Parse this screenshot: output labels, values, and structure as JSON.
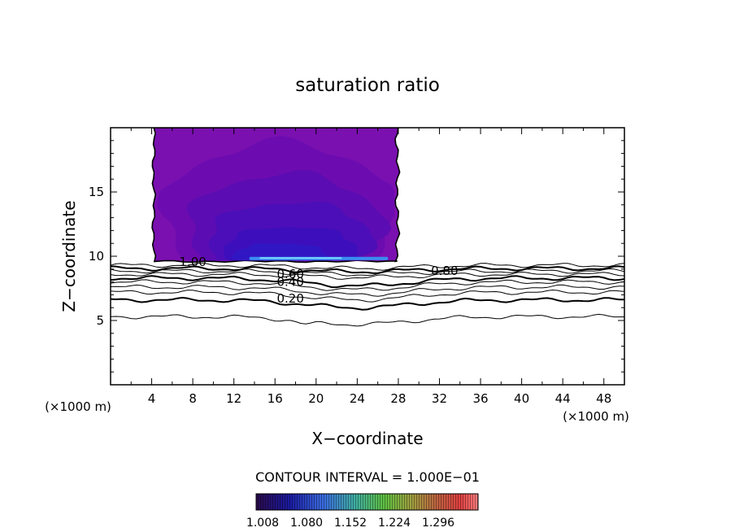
{
  "chart_data": {
    "type": "contour",
    "title": "saturation ratio",
    "xlabel": "X−coordinate",
    "ylabel": "Z−coordinate",
    "x_unit": "(×1000 m)",
    "y_unit": "(×1000 m)",
    "xlim": [
      0,
      50
    ],
    "ylim": [
      0,
      20
    ],
    "x_ticks": [
      4,
      8,
      12,
      16,
      20,
      24,
      28,
      32,
      36,
      40,
      44,
      48
    ],
    "y_ticks": [
      5,
      10,
      15
    ],
    "x_tick_labels": [
      "4",
      "8",
      "12",
      "16",
      "20",
      "24",
      "28",
      "32",
      "36",
      "40",
      "44",
      "48"
    ],
    "y_tick_labels": [
      "5",
      "10",
      "15"
    ],
    "contour_interval_text": "CONTOUR INTERVAL = 1.000E−01",
    "contour_labels": [
      {
        "text": "1.00",
        "x": 8.0,
        "z": 9.55
      },
      {
        "text": "0.80",
        "x": 32.5,
        "z": 8.85
      },
      {
        "text": "0.60",
        "x": 17.5,
        "z": 8.6
      },
      {
        "text": "0.40",
        "x": 17.5,
        "z": 8.0
      },
      {
        "text": "0.20",
        "x": 17.5,
        "z": 6.7
      }
    ],
    "contour_levels": [
      0.1,
      0.2,
      0.3,
      0.4,
      0.5,
      0.6,
      0.7,
      0.8,
      0.9,
      1.0
    ],
    "supersaturated_region": {
      "x_range": [
        4.2,
        27.9
      ],
      "z_range": [
        9.6,
        20.0
      ]
    },
    "colorbar": {
      "tick_labels": [
        "1.008",
        "1.080",
        "1.152",
        "1.224",
        "1.296"
      ],
      "colors": [
        "#2a0a4a",
        "#1a1aa0",
        "#3a6ae0",
        "#40b0a0",
        "#60c040",
        "#a0a040",
        "#c06040",
        "#e04040",
        "#ff8080"
      ]
    }
  }
}
